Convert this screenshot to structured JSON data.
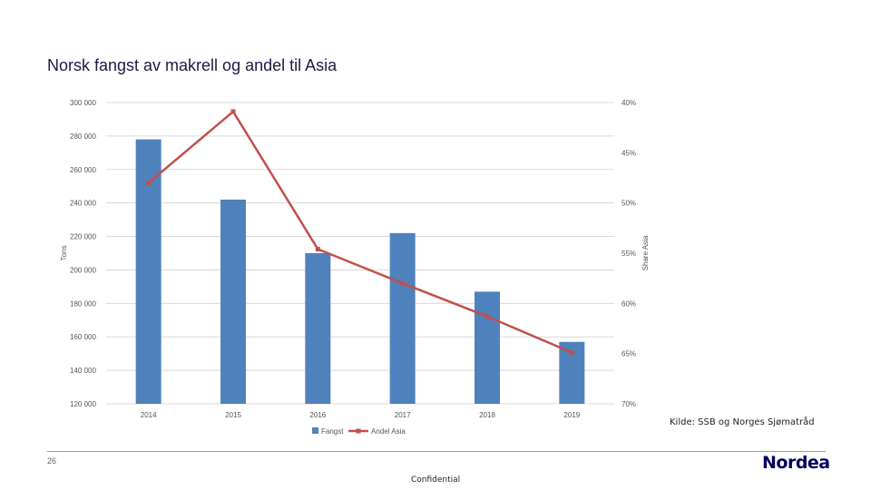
{
  "slide": {
    "title": "Norsk fangst av makrell og andel til Asia",
    "source": "Kilde: SSB og Norges Sjømatråd",
    "page_number": "26",
    "confidential": "Confidential",
    "logo": "Nordea"
  },
  "colors": {
    "bar": "#4f81bd",
    "line": "#c0504d",
    "grid": "#d9d9d9",
    "title": "#1b1b47",
    "logo": "#00005e"
  },
  "chart_data": {
    "type": "bar",
    "categories": [
      "2014",
      "2015",
      "2016",
      "2017",
      "2018",
      "2019"
    ],
    "series": [
      {
        "name": "Fangst",
        "type": "bar",
        "axis": "left",
        "values": [
          278000,
          242000,
          210000,
          222000,
          187000,
          157000
        ]
      },
      {
        "name": "Andel Asia",
        "type": "line",
        "axis": "right",
        "values": [
          0.48,
          0.409,
          0.546,
          0.58,
          0.613,
          0.649
        ]
      }
    ],
    "ylabel": "Tons",
    "y2label": "Share Asia",
    "ylim": [
      120000,
      300000
    ],
    "y2lim": [
      0.7,
      0.4
    ],
    "y2_reversed": true,
    "yticks": [
      "300 000",
      "280 000",
      "260 000",
      "240 000",
      "220 000",
      "200 000",
      "180 000",
      "160 000",
      "140 000",
      "120 000"
    ],
    "y2ticks": [
      "40%",
      "45%",
      "50%",
      "55%",
      "60%",
      "65%",
      "70%"
    ],
    "grid": true,
    "legend": "bottom"
  }
}
